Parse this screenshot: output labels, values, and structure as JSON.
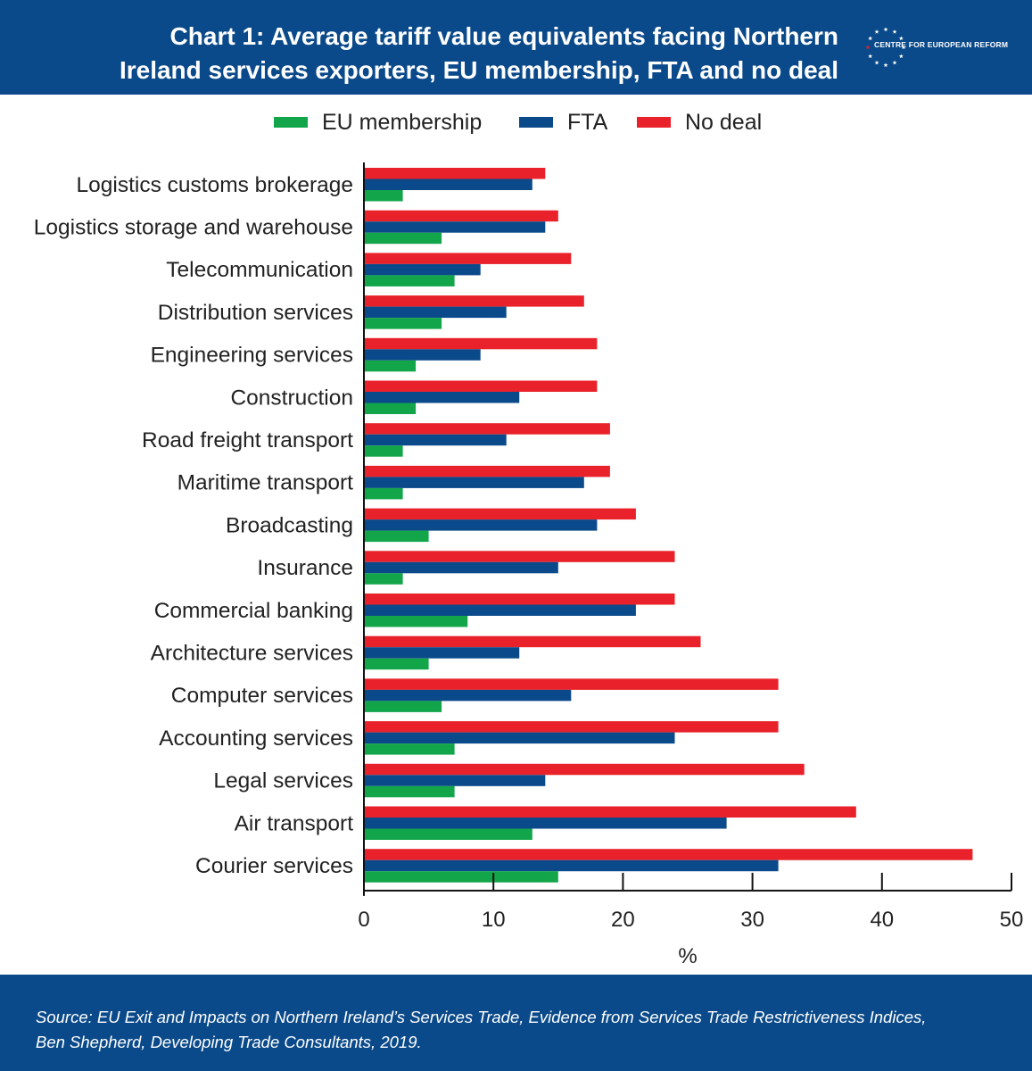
{
  "header": {
    "title_line1": "Chart 1: Average tariff value equivalents facing Northern",
    "title_line2": "Ireland services exporters, EU membership, FTA and no deal",
    "logo_text": "CENTRE FOR EUROPEAN REFORM"
  },
  "footer": {
    "source_line1": "Source: EU Exit and Impacts on Northern Ireland’s Services Trade, Evidence from Services Trade Restrictiveness Indices,",
    "source_line2": "Ben Shepherd, Developing Trade Consultants, 2019."
  },
  "colors": {
    "header_bg": "#0b4a8a",
    "eu": "#13a54a",
    "fta": "#0b4a8a",
    "nodeal": "#e8212a"
  },
  "chart_data": {
    "type": "bar",
    "orientation": "horizontal",
    "categories": [
      "Logistics customs brokerage",
      "Logistics storage and warehouse",
      "Telecommunication",
      "Distribution services",
      "Engineering services",
      "Construction",
      "Road freight transport",
      "Maritime transport",
      "Broadcasting",
      "Insurance",
      "Commercial banking",
      "Architecture services",
      "Computer services",
      "Accounting services",
      "Legal services",
      "Air transport",
      "Courier services"
    ],
    "series": [
      {
        "name": "EU membership",
        "color": "#13a54a",
        "values": [
          3,
          6,
          7,
          6,
          4,
          4,
          3,
          3,
          5,
          3,
          8,
          5,
          6,
          7,
          7,
          13,
          15
        ]
      },
      {
        "name": "FTA",
        "color": "#0b4a8a",
        "values": [
          13,
          14,
          9,
          11,
          9,
          12,
          11,
          17,
          18,
          15,
          21,
          12,
          16,
          24,
          14,
          28,
          32
        ]
      },
      {
        "name": "No deal",
        "color": "#e8212a",
        "values": [
          14,
          15,
          16,
          17,
          18,
          18,
          19,
          19,
          21,
          24,
          24,
          26,
          32,
          32,
          34,
          38,
          47
        ]
      }
    ],
    "xlabel": "%",
    "xlim": [
      0,
      50
    ],
    "xticks": [
      0,
      10,
      20,
      30,
      40,
      50
    ],
    "legend_position": "top",
    "grid": false
  }
}
